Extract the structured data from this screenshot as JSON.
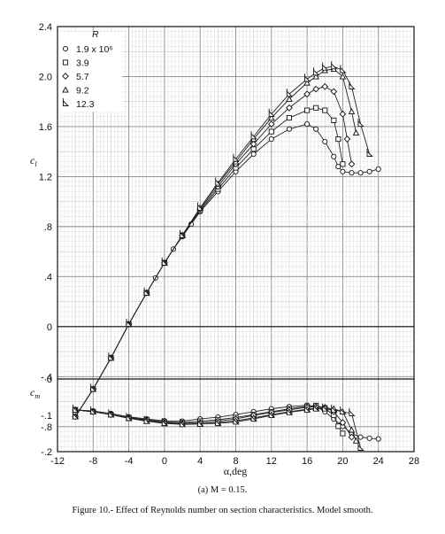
{
  "figure": {
    "subcaption": "(a)  M = 0.15.",
    "caption": "Figure 10.- Effect of Reynolds number on section characteristics.  Model smooth."
  },
  "chart_data": [
    {
      "type": "line",
      "title": "",
      "xlabel": "α,deg",
      "ylabel": "c_l",
      "xlim": [
        -12,
        28
      ],
      "ylim": [
        -1.0,
        2.4
      ],
      "xticks": [
        -12,
        -8,
        -4,
        0,
        4,
        8,
        12,
        16,
        20,
        24,
        28
      ],
      "xtick_labels": [
        "-12",
        "-8",
        "-4",
        "0",
        "4",
        "8",
        "12",
        "16",
        "20",
        "24",
        "28"
      ],
      "yticks": [
        -0.8,
        -0.4,
        0,
        0.4,
        0.8,
        1.2,
        1.6,
        2.0,
        2.4
      ],
      "ytick_labels": [
        "-.8",
        "-.4",
        "0",
        ".4",
        ".8",
        "1.2",
        "1.6",
        "2.0",
        "2.4"
      ],
      "grid": true,
      "legend": {
        "title": "R",
        "placement": "top-left",
        "entries": [
          {
            "label": "1.9 x 10⁶",
            "marker": "circle"
          },
          {
            "label": "3.9",
            "marker": "square"
          },
          {
            "label": "5.7",
            "marker": "diamond"
          },
          {
            "label": "9.2",
            "marker": "triangle"
          },
          {
            "label": "12.3",
            "marker": "flag-triangle"
          }
        ]
      },
      "series": [
        {
          "name": "1.9 x 10⁶",
          "marker": "circle",
          "x": [
            -10,
            -8,
            -6,
            -4,
            -2,
            -1,
            0,
            1,
            2,
            3,
            4,
            6,
            8,
            10,
            12,
            14,
            16,
            17,
            18,
            19,
            19.5,
            20,
            21,
            22,
            23,
            24
          ],
          "y": [
            -0.72,
            -0.5,
            -0.25,
            0.02,
            0.27,
            0.39,
            0.51,
            0.62,
            0.72,
            0.82,
            0.92,
            1.08,
            1.24,
            1.38,
            1.5,
            1.58,
            1.62,
            1.58,
            1.48,
            1.36,
            1.28,
            1.24,
            1.23,
            1.23,
            1.24,
            1.26
          ]
        },
        {
          "name": "3.9",
          "marker": "square",
          "x": [
            -10,
            -8,
            -6,
            -4,
            -2,
            0,
            2,
            4,
            6,
            8,
            10,
            12,
            14,
            16,
            17,
            18,
            19,
            19.5,
            20
          ],
          "y": [
            -0.72,
            -0.5,
            -0.25,
            0.02,
            0.27,
            0.51,
            0.73,
            0.93,
            1.1,
            1.27,
            1.42,
            1.56,
            1.67,
            1.73,
            1.75,
            1.73,
            1.65,
            1.5,
            1.3
          ]
        },
        {
          "name": "5.7",
          "marker": "diamond",
          "x": [
            -10,
            -8,
            -6,
            -4,
            -2,
            0,
            2,
            4,
            6,
            8,
            10,
            12,
            14,
            16,
            17,
            18,
            19,
            20,
            20.5,
            21
          ],
          "y": [
            -0.72,
            -0.5,
            -0.25,
            0.02,
            0.27,
            0.51,
            0.73,
            0.94,
            1.12,
            1.3,
            1.46,
            1.62,
            1.75,
            1.86,
            1.9,
            1.92,
            1.88,
            1.7,
            1.5,
            1.3
          ]
        },
        {
          "name": "9.2",
          "marker": "triangle",
          "x": [
            -10,
            -8,
            -6,
            -4,
            -2,
            0,
            2,
            4,
            6,
            8,
            10,
            12,
            14,
            16,
            17,
            18,
            19,
            20,
            21,
            21.5
          ],
          "y": [
            -0.72,
            -0.5,
            -0.25,
            0.02,
            0.27,
            0.51,
            0.73,
            0.95,
            1.14,
            1.32,
            1.5,
            1.67,
            1.82,
            1.95,
            2.0,
            2.05,
            2.06,
            2.0,
            1.72,
            1.55
          ]
        },
        {
          "name": "12.3",
          "marker": "flag-triangle",
          "x": [
            -10,
            -8,
            -6,
            -4,
            -2,
            0,
            2,
            4,
            6,
            8,
            10,
            12,
            14,
            16,
            17,
            18,
            19,
            20,
            21,
            22,
            23
          ],
          "y": [
            -0.72,
            -0.5,
            -0.25,
            0.02,
            0.27,
            0.51,
            0.73,
            0.95,
            1.15,
            1.34,
            1.52,
            1.7,
            1.86,
            1.98,
            2.03,
            2.07,
            2.08,
            2.05,
            1.92,
            1.62,
            1.38
          ]
        }
      ]
    },
    {
      "type": "line",
      "title": "",
      "xlabel": "α,deg",
      "ylabel": "c_m",
      "xlim": [
        -12,
        28
      ],
      "ylim": [
        -0.2,
        0
      ],
      "yticks": [
        -0.2,
        -0.1,
        0
      ],
      "ytick_labels": [
        "-.2",
        "-.1",
        "0"
      ],
      "grid": true,
      "series": [
        {
          "name": "1.9 x 10⁶",
          "marker": "circle",
          "x": [
            -10,
            -8,
            -6,
            -4,
            -2,
            0,
            2,
            4,
            6,
            8,
            10,
            12,
            14,
            16,
            17,
            18,
            19,
            20,
            21,
            22,
            23,
            24
          ],
          "y": [
            -0.085,
            -0.088,
            -0.095,
            -0.104,
            -0.11,
            -0.115,
            -0.116,
            -0.11,
            -0.105,
            -0.098,
            -0.09,
            -0.082,
            -0.076,
            -0.072,
            -0.076,
            -0.09,
            -0.11,
            -0.13,
            -0.15,
            -0.16,
            -0.163,
            -0.165
          ]
        },
        {
          "name": "3.9",
          "marker": "square",
          "x": [
            -10,
            -8,
            -6,
            -4,
            -2,
            0,
            2,
            4,
            6,
            8,
            10,
            12,
            14,
            16,
            17,
            18,
            19,
            19.5,
            20
          ],
          "y": [
            -0.085,
            -0.09,
            -0.098,
            -0.106,
            -0.112,
            -0.118,
            -0.12,
            -0.116,
            -0.112,
            -0.106,
            -0.098,
            -0.09,
            -0.082,
            -0.075,
            -0.073,
            -0.08,
            -0.1,
            -0.13,
            -0.15
          ]
        },
        {
          "name": "5.7",
          "marker": "diamond",
          "x": [
            -10,
            -8,
            -6,
            -4,
            -2,
            0,
            2,
            4,
            6,
            8,
            10,
            12,
            14,
            16,
            17,
            18,
            19,
            20,
            21
          ],
          "y": [
            -0.085,
            -0.09,
            -0.098,
            -0.107,
            -0.114,
            -0.12,
            -0.122,
            -0.12,
            -0.116,
            -0.11,
            -0.1,
            -0.092,
            -0.085,
            -0.078,
            -0.076,
            -0.078,
            -0.09,
            -0.12,
            -0.16
          ]
        },
        {
          "name": "9.2",
          "marker": "triangle",
          "x": [
            -10,
            -8,
            -6,
            -4,
            -2,
            0,
            2,
            4,
            6,
            8,
            10,
            12,
            14,
            16,
            17,
            18,
            19,
            20,
            21,
            21.5
          ],
          "y": [
            -0.085,
            -0.09,
            -0.098,
            -0.108,
            -0.116,
            -0.122,
            -0.124,
            -0.123,
            -0.12,
            -0.115,
            -0.107,
            -0.098,
            -0.09,
            -0.083,
            -0.08,
            -0.08,
            -0.082,
            -0.09,
            -0.14,
            -0.17
          ]
        },
        {
          "name": "12.3",
          "marker": "flag-triangle",
          "x": [
            -10,
            -8,
            -6,
            -4,
            -2,
            0,
            2,
            4,
            6,
            8,
            10,
            12,
            14,
            16,
            17,
            18,
            19,
            20,
            21,
            22
          ],
          "y": [
            -0.085,
            -0.09,
            -0.098,
            -0.108,
            -0.116,
            -0.122,
            -0.125,
            -0.124,
            -0.122,
            -0.118,
            -0.11,
            -0.1,
            -0.092,
            -0.085,
            -0.082,
            -0.082,
            -0.085,
            -0.09,
            -0.095,
            -0.19
          ]
        }
      ]
    }
  ]
}
